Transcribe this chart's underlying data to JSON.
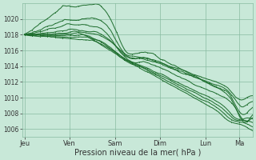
{
  "xlabel": "Pression niveau de la mer( hPa )",
  "background_color": "#c8e8d8",
  "grid_color": "#88bba0",
  "line_color": "#1a6b2a",
  "ylim": [
    1005,
    1022
  ],
  "yticks": [
    1006,
    1008,
    1010,
    1012,
    1014,
    1016,
    1018,
    1020
  ],
  "day_labels": [
    "Jeu",
    "Ven",
    "Sam",
    "Dim",
    "Lun",
    "Ma"
  ],
  "day_positions": [
    0.0,
    1.0,
    2.0,
    3.0,
    4.0,
    4.75
  ],
  "xlim": [
    -0.05,
    5.05
  ],
  "num_points": 120
}
